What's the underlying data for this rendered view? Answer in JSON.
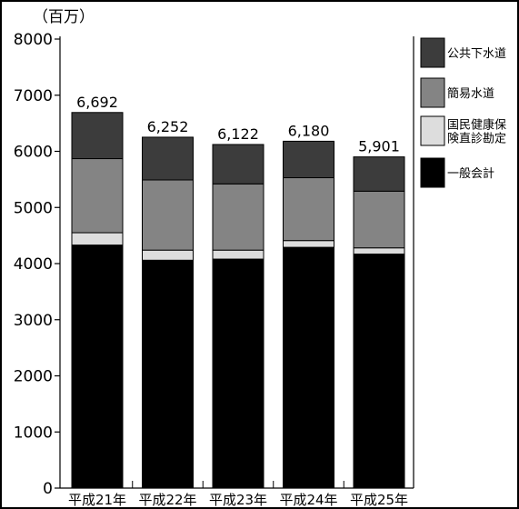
{
  "chart_data": {
    "type": "bar",
    "stacked": true,
    "unit_label": "（百万）",
    "categories": [
      "平成21年",
      "平成22年",
      "平成23年",
      "平成24年",
      "平成25年"
    ],
    "series": [
      {
        "name": "一般会計",
        "color": "#000000",
        "values": [
          4330,
          4060,
          4080,
          4290,
          4170
        ]
      },
      {
        "name": "国民健康保険直診勘定",
        "color": "#dddddd",
        "values": [
          220,
          180,
          160,
          120,
          110
        ]
      },
      {
        "name": "簡易水道",
        "color": "#848484",
        "values": [
          1320,
          1250,
          1180,
          1120,
          1010
        ]
      },
      {
        "name": "公共下水道",
        "color": "#3c3c3c",
        "values": [
          822,
          762,
          702,
          650,
          611
        ]
      }
    ],
    "totals": [
      "6,692",
      "6,252",
      "6,122",
      "6,180",
      "5,901"
    ],
    "ylim": [
      0,
      8000
    ],
    "yticks": [
      "0",
      "1000",
      "2000",
      "3000",
      "4000",
      "5000",
      "6000",
      "7000",
      "8000"
    ],
    "legend": {
      "position": "right",
      "items": [
        {
          "lines": [
            "公共下水道"
          ],
          "color": "#3c3c3c"
        },
        {
          "lines": [
            "簡易水道"
          ],
          "color": "#848484"
        },
        {
          "lines": [
            "国民健康保",
            "険直診勘定"
          ],
          "color": "#dddddd"
        },
        {
          "lines": [
            "一般会計"
          ],
          "color": "#000000"
        }
      ]
    }
  }
}
